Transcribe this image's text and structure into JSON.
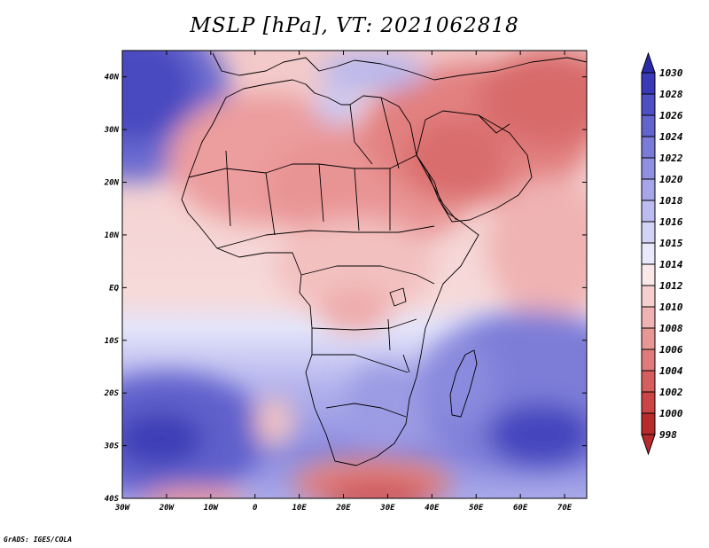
{
  "title": "MSLP [hPa], VT: 2021062818",
  "footer": "GrADS: IGES/COLA",
  "map": {
    "variable": "MSLP",
    "units": "hPa",
    "valid_time": "2021062818",
    "lon_range": [
      -30,
      75
    ],
    "lat_range": [
      -40,
      45
    ],
    "lon_ticks": [
      "30W",
      "20W",
      "10W",
      "0",
      "10E",
      "20E",
      "30E",
      "40E",
      "50E",
      "60E",
      "70E"
    ],
    "lat_ticks": [
      "40N",
      "30N",
      "20N",
      "10N",
      "EQ",
      "10S",
      "20S",
      "30S",
      "40S"
    ]
  },
  "colorbar": {
    "labels": [
      "1030",
      "1028",
      "1026",
      "1024",
      "1022",
      "1020",
      "1018",
      "1016",
      "1015",
      "1014",
      "1012",
      "1010",
      "1008",
      "1006",
      "1004",
      "1002",
      "1000",
      "998"
    ],
    "colors": [
      "#2b2baa",
      "#3a3ab8",
      "#4f4fc4",
      "#6464cf",
      "#7a7ad8",
      "#9090e1",
      "#a6a6ea",
      "#bcbcf0",
      "#d3d3f6",
      "#e9e9fb",
      "#fbe9e9",
      "#f6cfcf",
      "#efb3b3",
      "#e89797",
      "#e07b7b",
      "#d65e5e",
      "#cc4444",
      "#b82b2b"
    ]
  }
}
